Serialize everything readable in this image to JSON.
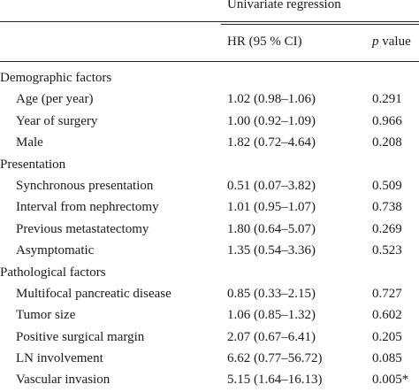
{
  "header": {
    "group_title": "Univariate regression",
    "col_hr": "HR (95 % CI)",
    "col_p_italic": "p",
    "col_p_rest": " value"
  },
  "rows": [
    {
      "type": "section",
      "label": "Demographic factors",
      "hr": "",
      "p": ""
    },
    {
      "type": "item",
      "label": "Age (per year)",
      "hr": "1.02 (0.98–1.06)",
      "p": "0.291"
    },
    {
      "type": "item",
      "label": "Year of surgery",
      "hr": "1.00 (0.92–1.09)",
      "p": "0.966"
    },
    {
      "type": "item",
      "label": "Male",
      "hr": "1.82 (0.72–4.64)",
      "p": "0.208"
    },
    {
      "type": "section",
      "label": "Presentation",
      "hr": "",
      "p": ""
    },
    {
      "type": "item",
      "label": "Synchronous presentation",
      "hr": "0.51 (0.07–3.82)",
      "p": "0.509"
    },
    {
      "type": "item",
      "label": "Interval from nephrectomy",
      "hr": "1.01 (0.95–1.07)",
      "p": "0.738"
    },
    {
      "type": "item",
      "label": "Previous metastatectomy",
      "hr": "1.80 (0.64–5.07)",
      "p": "0.269"
    },
    {
      "type": "item",
      "label": "Asymptomatic",
      "hr": "1.35 (0.54–3.36)",
      "p": "0.523"
    },
    {
      "type": "section",
      "label": "Pathological factors",
      "hr": "",
      "p": ""
    },
    {
      "type": "item",
      "label": "Multifocal pancreatic disease",
      "hr": "0.85 (0.33–2.15)",
      "p": "0.727"
    },
    {
      "type": "item",
      "label": "Tumor size",
      "hr": "1.06 (0.85–1.32)",
      "p": "0.602"
    },
    {
      "type": "item",
      "label": "Positive surgical margin",
      "hr": "2.07 (0.67–6.41)",
      "p": "0.205"
    },
    {
      "type": "item",
      "label": "LN involvement",
      "hr": "6.62 (0.77–56.72)",
      "p": "0.085"
    },
    {
      "type": "item",
      "label": "Vascular invasion",
      "hr": "5.15 (1.64–16.13)",
      "p": "0.005*"
    }
  ]
}
